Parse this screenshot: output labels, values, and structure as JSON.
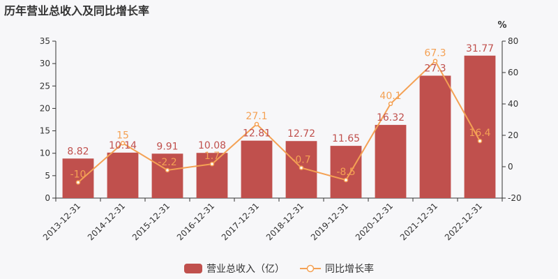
{
  "chart_data": {
    "type": "bar",
    "title": "历年营业总收入及同比增长率",
    "categories": [
      "2013-12-31",
      "2014-12-31",
      "2015-12-31",
      "2016-12-31",
      "2017-12-31",
      "2018-12-31",
      "2019-12-31",
      "2020-12-31",
      "2021-12-31",
      "2022-12-31"
    ],
    "series": [
      {
        "name": "营业总收入（亿）",
        "type": "bar",
        "axis": "left",
        "color": "#c0504d",
        "values": [
          8.82,
          10.14,
          9.91,
          10.08,
          12.81,
          12.72,
          11.65,
          16.32,
          27.3,
          31.77
        ],
        "labels": [
          "8.82",
          "10.14",
          "9.91",
          "10.08",
          "12.81",
          "12.72",
          "11.65",
          "16.32",
          "27.3",
          "31.77"
        ]
      },
      {
        "name": "同比增长率",
        "type": "line",
        "axis": "right",
        "color": "#f4a154",
        "values": [
          -10,
          15,
          -2.2,
          1.7,
          27.1,
          -0.7,
          -8.5,
          40.1,
          67.3,
          16.4
        ],
        "labels": [
          "-10",
          "15",
          "-2.2",
          "1.7",
          "27.1",
          "-0.7",
          "-8.5",
          "40.1",
          "67.3",
          "16.4"
        ]
      }
    ],
    "y_left": {
      "min": 0,
      "max": 35,
      "ticks": [
        "0",
        "5",
        "10",
        "15",
        "20",
        "25",
        "30",
        "35"
      ]
    },
    "y_right": {
      "min": -20,
      "max": 80,
      "unit": "%",
      "ticks": [
        "-20",
        "0",
        "20",
        "40",
        "60",
        "80"
      ]
    },
    "grid": false,
    "legend_position": "bottom"
  }
}
